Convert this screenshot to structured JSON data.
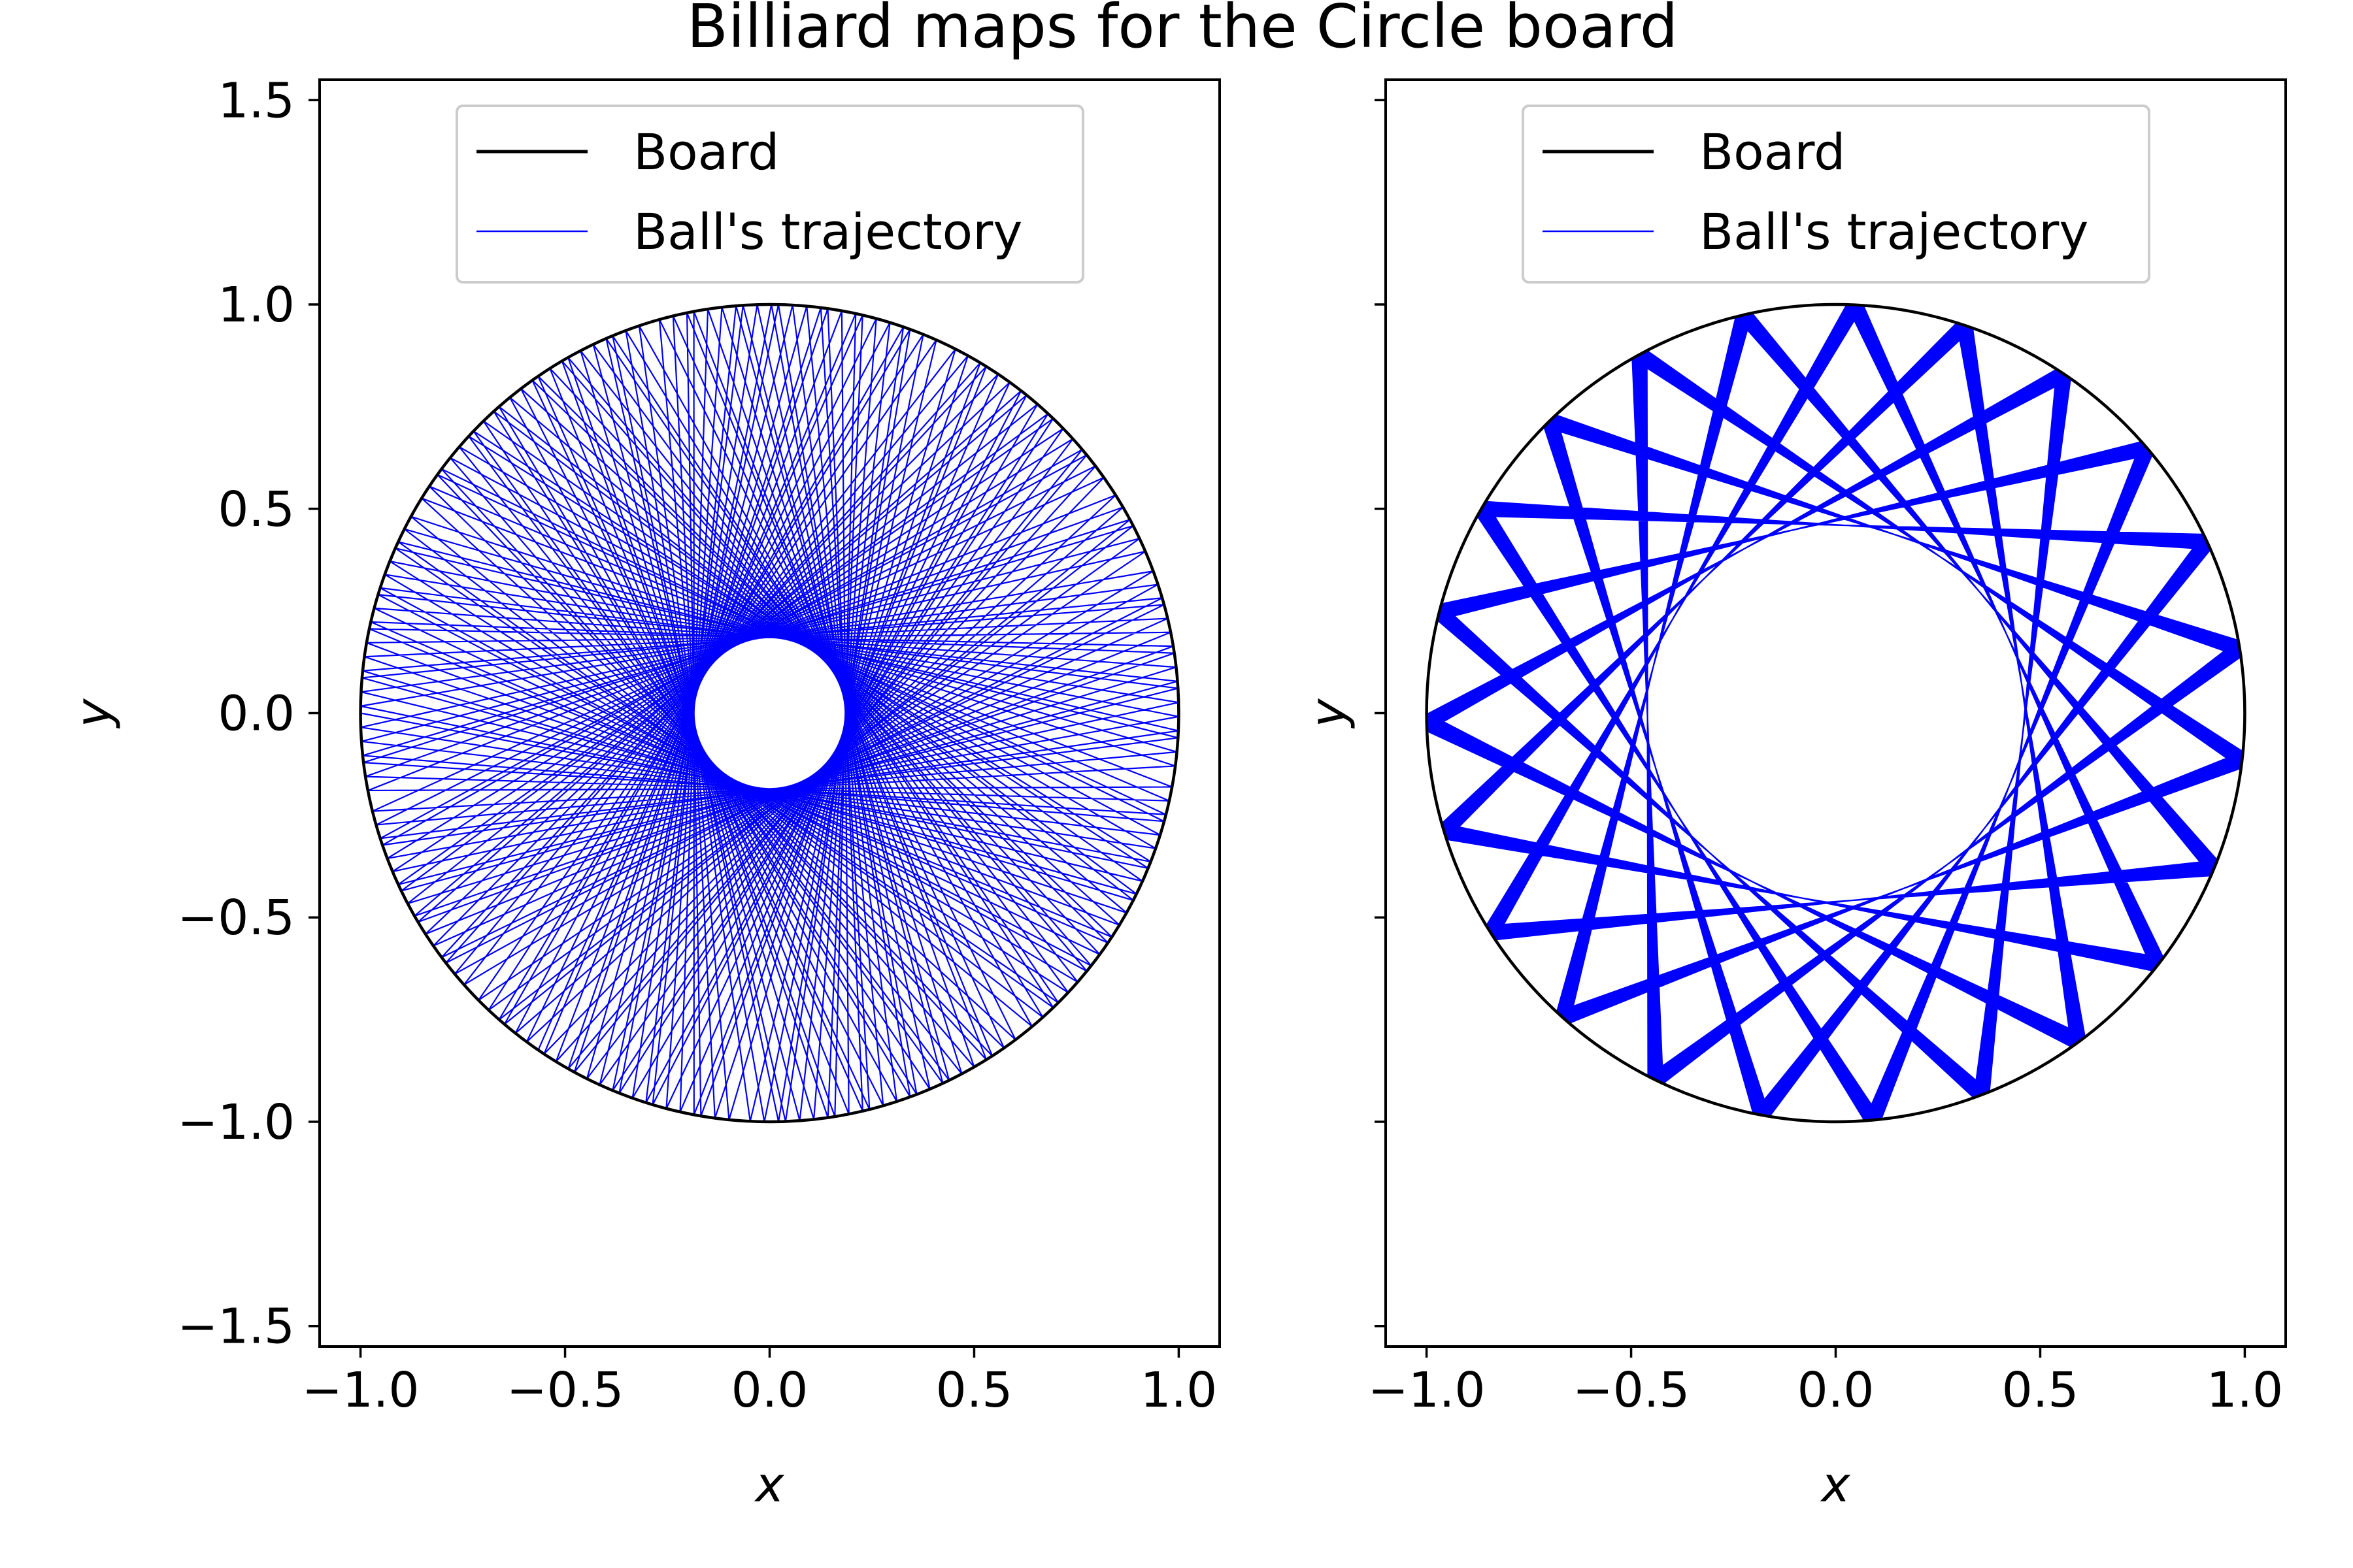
{
  "title": "Billiard maps for the Circle board",
  "colors": {
    "board": "#000000",
    "trajectory": "#0000ff",
    "background": "#ffffff"
  },
  "chart_data": [
    {
      "type": "line",
      "title": "",
      "xlabel": "x",
      "ylabel": "y",
      "xlim": [
        -1.1,
        1.1
      ],
      "ylim": [
        -1.55,
        1.55
      ],
      "xticks": [
        -1.0,
        -0.5,
        0.0,
        0.5,
        1.0
      ],
      "xtick_labels": [
        "−1.0",
        "−0.5",
        "0.0",
        "0.5",
        "1.0"
      ],
      "yticks": [
        -1.5,
        -1.0,
        -0.5,
        0.0,
        0.5,
        1.0,
        1.5
      ],
      "ytick_labels": [
        "−1.5",
        "−1.0",
        "−0.5",
        "0.0",
        "0.5",
        "1.0",
        "1.5"
      ],
      "show_ytick_labels": true,
      "grid": false,
      "legend_position": "upper-center",
      "series": [
        {
          "name": "Board",
          "kind": "circle",
          "radius": 1.0,
          "color": "#000000"
        },
        {
          "name": "Ball's trajectory",
          "kind": "chord-polyline",
          "radius": 1.0,
          "caustic_radius": 0.185,
          "bounces": 200,
          "color": "#0000ff"
        }
      ]
    },
    {
      "type": "line",
      "title": "",
      "xlabel": "x",
      "ylabel": "y",
      "xlim": [
        -1.1,
        1.1
      ],
      "ylim": [
        -1.55,
        1.55
      ],
      "xticks": [
        -1.0,
        -0.5,
        0.0,
        0.5,
        1.0
      ],
      "xtick_labels": [
        "−1.0",
        "−0.5",
        "0.0",
        "0.5",
        "1.0"
      ],
      "yticks": [
        -1.5,
        -1.0,
        -0.5,
        0.0,
        0.5,
        1.0,
        1.5
      ],
      "ytick_labels": [
        "−1.5",
        "−1.0",
        "−0.5",
        "0.0",
        "0.5",
        "1.0",
        "1.5"
      ],
      "show_ytick_labels": false,
      "grid": false,
      "legend_position": "upper-center",
      "series": [
        {
          "name": "Board",
          "kind": "circle",
          "radius": 1.0,
          "color": "#000000"
        },
        {
          "name": "Ball's trajectory",
          "kind": "chord-polyline",
          "radius": 1.0,
          "caustic_radius": 0.46,
          "bounces": 300,
          "color": "#0000ff"
        }
      ]
    }
  ]
}
